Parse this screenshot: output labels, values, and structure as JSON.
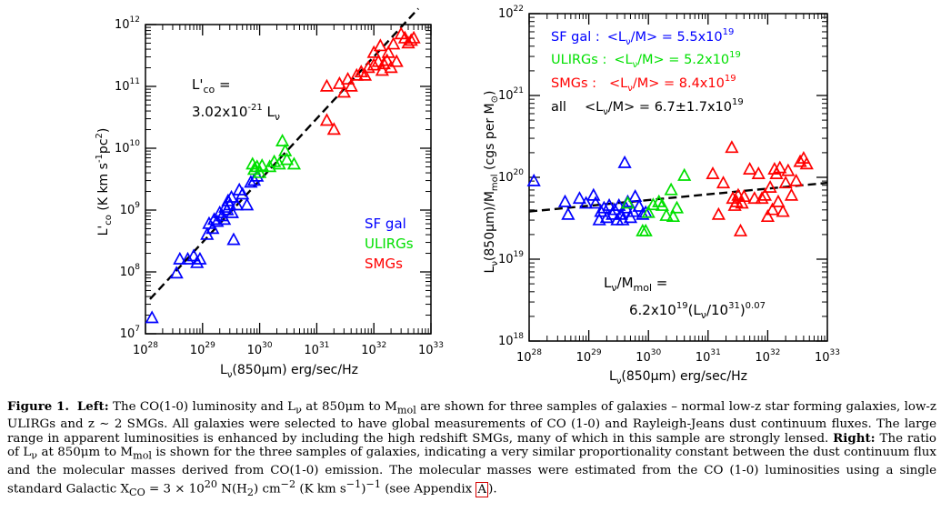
{
  "left_panel": {
    "xlabel_main": "L",
    "xlabel_sub": "ν",
    "xlabel_rest": "(850μm) erg/sec/Hz",
    "ylabel_main": "L'",
    "ylabel_sub": "co",
    "ylabel_rest": " (K km s",
    "ylabel_sup1": "-1",
    "ylabel_mid": "pc",
    "ylabel_sup2": "2",
    "ylabel_end": ")",
    "annot_line1_main": "L'",
    "annot_line1_sub": "co",
    "annot_line1_rest": " =",
    "annot_line2_main": "3.02x10",
    "annot_line2_sup": "-21",
    "annot_line2_rest": " L",
    "annot_line2_sub": "ν",
    "legend": [
      {
        "label": "SF gal",
        "color": "#0000ff"
      },
      {
        "label": "ULIRGs",
        "color": "#00e000"
      },
      {
        "label": "SMGs",
        "color": "#ff0000"
      }
    ],
    "x_ticks": [
      {
        "base": "10",
        "exp": "28"
      },
      {
        "base": "10",
        "exp": "29"
      },
      {
        "base": "10",
        "exp": "30"
      },
      {
        "base": "10",
        "exp": "31"
      },
      {
        "base": "10",
        "exp": "32"
      },
      {
        "base": "10",
        "exp": "33"
      }
    ],
    "y_ticks": [
      {
        "base": "10",
        "exp": "7"
      },
      {
        "base": "10",
        "exp": "8"
      },
      {
        "base": "10",
        "exp": "9"
      },
      {
        "base": "10",
        "exp": "10"
      },
      {
        "base": "10",
        "exp": "11"
      },
      {
        "base": "10",
        "exp": "12"
      }
    ]
  },
  "right_panel": {
    "xlabel_main": "L",
    "xlabel_sub": "ν",
    "xlabel_rest": "(850μm) erg/sec/Hz",
    "ylabel_main": "L",
    "ylabel_sub": "ν",
    "ylabel_rest": "(850μm)/M",
    "ylabel_sub2": "mol",
    "ylabel_end": " (cgs per M",
    "ylabel_sun": "⊙",
    "ylabel_close": ")",
    "legend": [
      {
        "name": "SF gal :",
        "expr": "<L",
        "sub": "ν",
        "rest": "/M> = 5.5x10",
        "sup": "19",
        "color": "#0000ff"
      },
      {
        "name": "ULIRGs :",
        "expr": "<L",
        "sub": "ν",
        "rest": "/M> = 5.2x10",
        "sup": "19",
        "color": "#00e000"
      },
      {
        "name": "SMGs :",
        "expr": "<L",
        "sub": "ν",
        "rest": "/M> = 8.4x10",
        "sup": "19",
        "color": "#ff0000"
      },
      {
        "name": "all",
        "expr": "<L",
        "sub": "ν",
        "rest": "/M> = 6.7±1.7x10",
        "sup": "19",
        "color": "#000000"
      }
    ],
    "annot_line1_main": "L",
    "annot_line1_sub": "ν",
    "annot_line1_mid": "/M",
    "annot_line1_sub2": "mol",
    "annot_line1_end": " =",
    "annot_line2_main": "6.2x10",
    "annot_line2_sup": "19",
    "annot_line2_mid": "(L",
    "annot_line2_sub": "ν",
    "annot_line2_mid2": "/10",
    "annot_line2_sup2": "31",
    "annot_line2_end": ")",
    "annot_line2_sup3": "0.07",
    "x_ticks": [
      {
        "base": "10",
        "exp": "28"
      },
      {
        "base": "10",
        "exp": "29"
      },
      {
        "base": "10",
        "exp": "30"
      },
      {
        "base": "10",
        "exp": "31"
      },
      {
        "base": "10",
        "exp": "32"
      },
      {
        "base": "10",
        "exp": "33"
      }
    ],
    "y_ticks": [
      {
        "base": "10",
        "exp": "18"
      },
      {
        "base": "10",
        "exp": "19"
      },
      {
        "base": "10",
        "exp": "20"
      },
      {
        "base": "10",
        "exp": "21"
      },
      {
        "base": "10",
        "exp": "22"
      }
    ]
  },
  "caption": {
    "fig_label": "Figure 1.",
    "left_label": "Left:",
    "text1": " The CO(1-0) luminosity and L",
    "text1_sub": "ν",
    "text2": " at 850μm to M",
    "text2_sub": "mol",
    "text3": " are shown for three samples of galaxies – normal low-z star forming galaxies, low-z ULIRGs and z ∼ 2 SMGs. All galaxies were selected to have global measurements of CO (1-0) and Rayleigh-Jeans dust continuum fluxes. The large range in apparent luminosities is enhanced by including the high redshift SMGs, many of which in this sample are strongly lensed. ",
    "right_label": "Right:",
    "text4": " The ratio of L",
    "text4_sub": "ν",
    "text5": " at 850μm to M",
    "text5_sub": "mol",
    "text6": " is shown for the three samples of galaxies, indicating a very similar proportionality constant between the dust continuum flux and the molecular masses derived from CO(1-0) emission. The molecular masses were estimated from the CO (1-0) luminosities using a single standard Galactic X",
    "text6_sub": "CO",
    "text7": " = 3 × 10",
    "text7_sup": "20",
    "text8": " N(H",
    "text8_sub": "2",
    "text9": ") cm",
    "text9_sup": "−2",
    "text10": " (K km s",
    "text10_sup": "−1",
    "text11": ")",
    "text11_sup": "−1",
    "text12": " (see Appendix ",
    "appendix_ref": "A",
    "text13": ")."
  },
  "chart_data": [
    {
      "type": "scatter",
      "title": "",
      "xlabel": "Lν(850μm) erg/sec/Hz",
      "ylabel": "L'co (K km s-1pc2)",
      "x_scale": "log",
      "y_scale": "log",
      "xlim": [
        1e+28,
        1e+33
      ],
      "ylim": [
        10000000.0,
        1000000000000.0
      ],
      "fit_line": {
        "slope_loglog": 1.0,
        "coefficient": 3.02e-21,
        "style": "dashed",
        "color": "#000000"
      },
      "legend_position": "bottom-right",
      "series": [
        {
          "name": "SF gal",
          "color": "#0000ff",
          "marker": "triangle-open",
          "points": [
            [
              1.3e+28,
              18000000.0
            ],
            [
              3.5e+28,
              95000000.0
            ],
            [
              4e+28,
              160000000.0
            ],
            [
              5.5e+28,
              160000000.0
            ],
            [
              7e+28,
              180000000.0
            ],
            [
              8e+28,
              140000000.0
            ],
            [
              9e+28,
              160000000.0
            ],
            [
              1.2e+29,
              400000000.0
            ],
            [
              1.3e+29,
              600000000.0
            ],
            [
              1.5e+29,
              500000000.0
            ],
            [
              1.6e+29,
              700000000.0
            ],
            [
              1.8e+29,
              650000000.0
            ],
            [
              2e+29,
              900000000.0
            ],
            [
              2.2e+29,
              800000000.0
            ],
            [
              2.4e+29,
              700000000.0
            ],
            [
              2.5e+29,
              1100000000.0
            ],
            [
              2.7e+29,
              1000000000.0
            ],
            [
              2.8e+29,
              1400000000.0
            ],
            [
              3e+29,
              1200000000.0
            ],
            [
              3.2e+29,
              1600000000.0
            ],
            [
              3.3e+29,
              900000000.0
            ],
            [
              3.5e+29,
              330000000.0
            ],
            [
              4e+29,
              1200000000.0
            ],
            [
              4.4e+29,
              2100000000.0
            ],
            [
              5e+29,
              1800000000.0
            ],
            [
              6e+29,
              1200000000.0
            ],
            [
              7e+29,
              2800000000.0
            ],
            [
              8e+29,
              3000000000.0
            ],
            [
              9e+29,
              3500000000.0
            ]
          ]
        },
        {
          "name": "ULIRGs",
          "color": "#00e000",
          "marker": "triangle-open",
          "points": [
            [
              7.5e+29,
              5500000000.0
            ],
            [
              8e+29,
              4500000000.0
            ],
            [
              9e+29,
              5000000000.0
            ],
            [
              1e+30,
              4000000000.0
            ],
            [
              1.1e+30,
              5200000000.0
            ],
            [
              1.5e+30,
              5000000000.0
            ],
            [
              1.8e+30,
              6000000000.0
            ],
            [
              2.2e+30,
              5500000000.0
            ],
            [
              2.5e+30,
              13000000000.0
            ],
            [
              2.8e+30,
              9000000000.0
            ],
            [
              3e+30,
              6500000000.0
            ],
            [
              4e+30,
              5500000000.0
            ]
          ]
        },
        {
          "name": "SMGs",
          "color": "#ff0000",
          "marker": "triangle-open",
          "points": [
            [
              1.5e+31,
              28000000000.0
            ],
            [
              2e+31,
              20000000000.0
            ],
            [
              1.5e+31,
              100000000000.0
            ],
            [
              2.5e+31,
              110000000000.0
            ],
            [
              3e+31,
              80000000000.0
            ],
            [
              3.5e+31,
              130000000000.0
            ],
            [
              4e+31,
              100000000000.0
            ],
            [
              5e+31,
              150000000000.0
            ],
            [
              6e+31,
              170000000000.0
            ],
            [
              7e+31,
              150000000000.0
            ],
            [
              8e+31,
              200000000000.0
            ],
            [
              1e+32,
              220000000000.0
            ],
            [
              1e+32,
              350000000000.0
            ],
            [
              1.2e+32,
              250000000000.0
            ],
            [
              1.3e+32,
              450000000000.0
            ],
            [
              1.4e+32,
              180000000000.0
            ],
            [
              1.5e+32,
              230000000000.0
            ],
            [
              1.7e+32,
              260000000000.0
            ],
            [
              1.8e+32,
              350000000000.0
            ],
            [
              2e+32,
              200000000000.0
            ],
            [
              2.2e+32,
              480000000000.0
            ],
            [
              2.5e+32,
              250000000000.0
            ],
            [
              3e+32,
              700000000000.0
            ],
            [
              3.5e+32,
              600000000000.0
            ],
            [
              4e+32,
              500000000000.0
            ],
            [
              4.5e+32,
              550000000000.0
            ],
            [
              5e+32,
              600000000000.0
            ]
          ]
        }
      ]
    },
    {
      "type": "scatter",
      "title": "",
      "xlabel": "Lν(850μm) erg/sec/Hz",
      "ylabel": "Lν(850μm)/Mmol (cgs per M⊙)",
      "x_scale": "log",
      "y_scale": "log",
      "xlim": [
        1e+28,
        1e+33
      ],
      "ylim": [
        1e+18,
        1e+22
      ],
      "fit_line": {
        "coefficient": 6.2e+19,
        "exponent": 0.07,
        "pivot": 1e+31,
        "style": "dashed",
        "color": "#000000"
      },
      "legend_position": "top-left",
      "series": [
        {
          "name": "SF gal",
          "color": "#0000ff",
          "marker": "triangle-open",
          "points": [
            [
              1.2e+28,
              9e+19
            ],
            [
              4e+28,
              5e+19
            ],
            [
              4.5e+28,
              3.5e+19
            ],
            [
              7e+28,
              5.5e+19
            ],
            [
              9e+28,
              4.8e+19
            ],
            [
              1.2e+29,
              6e+19
            ],
            [
              1.3e+29,
              4.8e+19
            ],
            [
              1.5e+29,
              3e+19
            ],
            [
              1.6e+29,
              3.8e+19
            ],
            [
              1.8e+29,
              4.2e+19
            ],
            [
              2e+29,
              3.2e+19
            ],
            [
              2.2e+29,
              4.5e+19
            ],
            [
              2.5e+29,
              3.5e+19
            ],
            [
              2.7e+29,
              4e+19
            ],
            [
              3e+29,
              3e+19
            ],
            [
              3.2e+29,
              4.5e+19
            ],
            [
              3.5e+29,
              3.5e+19
            ],
            [
              3.7e+29,
              3e+19
            ],
            [
              4e+29,
              1.5e+20
            ],
            [
              4.2e+29,
              4.2e+19
            ],
            [
              4.5e+29,
              5e+19
            ],
            [
              5e+29,
              3.2e+19
            ],
            [
              5.5e+29,
              3.8e+19
            ],
            [
              6e+29,
              5.8e+19
            ],
            [
              7e+29,
              4.4e+19
            ],
            [
              8e+29,
              3.5e+19
            ],
            [
              9e+29,
              3.7e+19
            ]
          ]
        },
        {
          "name": "ULIRGs",
          "color": "#00e000",
          "marker": "triangle-open",
          "points": [
            [
              4.5e+29,
              4.8e+19
            ],
            [
              8e+29,
              2.2e+19
            ],
            [
              9e+29,
              2.2e+19
            ],
            [
              1e+30,
              3.7e+19
            ],
            [
              1.2e+30,
              4.6e+19
            ],
            [
              1.5e+30,
              5e+19
            ],
            [
              1.7e+30,
              4.5e+19
            ],
            [
              2e+30,
              3.4e+19
            ],
            [
              2.4e+30,
              7e+19
            ],
            [
              2.6e+30,
              3.3e+19
            ],
            [
              3e+30,
              4.2e+19
            ],
            [
              4e+30,
              1.05e+20
            ]
          ]
        },
        {
          "name": "SMGs",
          "color": "#ff0000",
          "marker": "triangle-open",
          "points": [
            [
              1.2e+31,
              1.1e+20
            ],
            [
              1.5e+31,
              3.5e+19
            ],
            [
              1.8e+31,
              8.5e+19
            ],
            [
              2.5e+31,
              2.3e+20
            ],
            [
              2.6e+31,
              5.5e+19
            ],
            [
              2.8e+31,
              4.5e+19
            ],
            [
              3e+31,
              5e+19
            ],
            [
              3.2e+31,
              6e+19
            ],
            [
              3.5e+31,
              2.2e+19
            ],
            [
              3.7e+31,
              4.8e+19
            ],
            [
              4e+31,
              5.8e+19
            ],
            [
              5e+31,
              1.25e+20
            ],
            [
              6e+31,
              5.5e+19
            ],
            [
              7e+31,
              1.1e+20
            ],
            [
              8e+31,
              5.5e+19
            ],
            [
              9e+31,
              6e+19
            ],
            [
              1e+32,
              3.3e+19
            ],
            [
              1.1e+32,
              7.5e+19
            ],
            [
              1.2e+32,
              4e+19
            ],
            [
              1.3e+32,
              1.25e+20
            ],
            [
              1.4e+32,
              1.1e+20
            ],
            [
              1.5e+32,
              5e+19
            ],
            [
              1.6e+32,
              1.3e+20
            ],
            [
              1.8e+32,
              3.8e+19
            ],
            [
              2e+32,
              8.5e+19
            ],
            [
              2.2e+32,
              1.2e+20
            ],
            [
              2.5e+32,
              6e+19
            ],
            [
              3e+32,
              9e+19
            ],
            [
              3.5e+32,
              1.55e+20
            ],
            [
              4e+32,
              1.7e+20
            ],
            [
              4.5e+32,
              1.45e+20
            ]
          ]
        }
      ]
    }
  ]
}
